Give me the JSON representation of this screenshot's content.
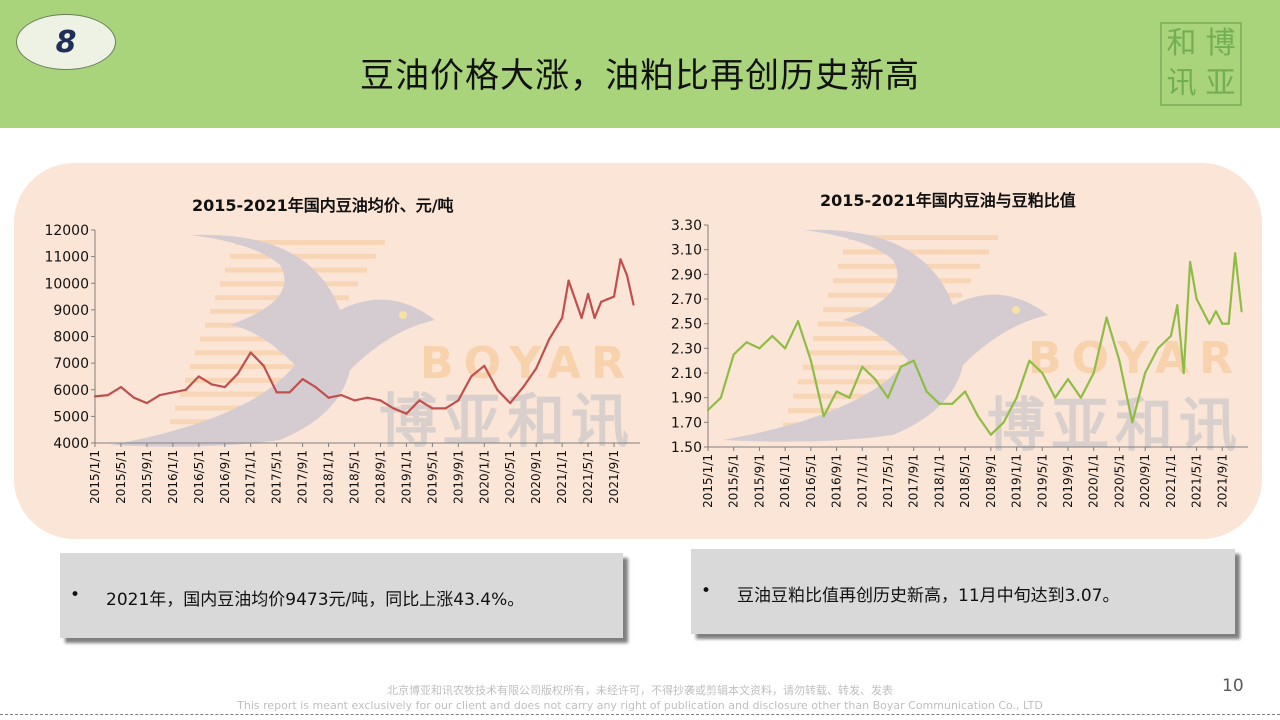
{
  "header": {
    "slide_number": "8",
    "title": "豆油价格大涨，油粕比再创历史新高",
    "logo_chars": [
      "和",
      "博",
      "讯",
      "亚"
    ]
  },
  "watermark": {
    "latin": "BOYAR",
    "cjk": "博亚和讯"
  },
  "chart_data": [
    {
      "type": "line",
      "title": "2015-2021年国内豆油均价、元/吨",
      "color": "#c0504d",
      "ylim": [
        4000,
        12000
      ],
      "yticks": [
        12000,
        11000,
        10000,
        9000,
        8000,
        7000,
        6000,
        5000,
        4000
      ],
      "xticks": [
        "2015/1/1",
        "2015/5/1",
        "2015/9/1",
        "2016/1/1",
        "2016/5/1",
        "2016/9/1",
        "2017/1/1",
        "2017/5/1",
        "2017/9/1",
        "2018/1/1",
        "2018/5/1",
        "2018/9/1",
        "2019/1/1",
        "2019/5/1",
        "2019/9/1",
        "2020/1/1",
        "2020/5/1",
        "2020/9/1",
        "2021/1/1",
        "2021/5/1",
        "2021/9/1"
      ],
      "x": [
        "2015/1",
        "2015/3",
        "2015/5",
        "2015/7",
        "2015/9",
        "2015/11",
        "2016/1",
        "2016/3",
        "2016/5",
        "2016/7",
        "2016/9",
        "2016/11",
        "2017/1",
        "2017/3",
        "2017/5",
        "2017/7",
        "2017/9",
        "2017/11",
        "2018/1",
        "2018/3",
        "2018/5",
        "2018/7",
        "2018/9",
        "2018/11",
        "2019/1",
        "2019/3",
        "2019/5",
        "2019/7",
        "2019/9",
        "2019/11",
        "2020/1",
        "2020/3",
        "2020/5",
        "2020/7",
        "2020/9",
        "2020/11",
        "2021/1",
        "2021/2",
        "2021/4",
        "2021/5",
        "2021/6",
        "2021/7",
        "2021/8",
        "2021/9",
        "2021/10",
        "2021/11",
        "2021/12"
      ],
      "values": [
        5750,
        5800,
        6100,
        5700,
        5500,
        5800,
        5900,
        6000,
        6500,
        6200,
        6100,
        6600,
        7400,
        6900,
        5900,
        5900,
        6400,
        6100,
        5700,
        5800,
        5600,
        5700,
        5600,
        5300,
        5100,
        5600,
        5300,
        5300,
        5600,
        6500,
        6900,
        6000,
        5500,
        6100,
        6800,
        7900,
        8700,
        10100,
        8700,
        9600,
        8700,
        9300,
        9400,
        9500,
        10900,
        10300,
        9200
      ]
    },
    {
      "type": "line",
      "title": "2015-2021年国内豆油与豆粕比值",
      "color": "#8fbc45",
      "ylim": [
        1.5,
        3.3
      ],
      "yticks": [
        "3.30",
        "3.10",
        "2.90",
        "2.70",
        "2.50",
        "2.30",
        "2.10",
        "1.90",
        "1.70",
        "1.50"
      ],
      "xticks": [
        "2015/1/1",
        "2015/5/1",
        "2015/9/1",
        "2016/1/1",
        "2016/5/1",
        "2016/9/1",
        "2017/1/1",
        "2017/5/1",
        "2017/9/1",
        "2018/1/1",
        "2018/5/1",
        "2018/9/1",
        "2019/1/1",
        "2019/5/1",
        "2019/9/1",
        "2020/1/1",
        "2020/5/1",
        "2020/9/1",
        "2021/1/1",
        "2021/5/1",
        "2021/9/1"
      ],
      "x": [
        "2015/1",
        "2015/3",
        "2015/5",
        "2015/7",
        "2015/9",
        "2015/11",
        "2016/1",
        "2016/3",
        "2016/5",
        "2016/7",
        "2016/9",
        "2016/11",
        "2017/1",
        "2017/3",
        "2017/5",
        "2017/7",
        "2017/9",
        "2017/11",
        "2018/1",
        "2018/3",
        "2018/5",
        "2018/7",
        "2018/9",
        "2018/11",
        "2019/1",
        "2019/3",
        "2019/5",
        "2019/7",
        "2019/9",
        "2019/11",
        "2020/1",
        "2020/3",
        "2020/5",
        "2020/7",
        "2020/9",
        "2020/11",
        "2021/1",
        "2021/2",
        "2021/3",
        "2021/4",
        "2021/5",
        "2021/7",
        "2021/8",
        "2021/9",
        "2021/10",
        "2021/11",
        "2021/12"
      ],
      "values": [
        1.8,
        1.9,
        2.25,
        2.35,
        2.3,
        2.4,
        2.3,
        2.52,
        2.2,
        1.75,
        1.95,
        1.9,
        2.15,
        2.05,
        1.9,
        2.15,
        2.2,
        1.95,
        1.85,
        1.85,
        1.95,
        1.75,
        1.6,
        1.7,
        1.9,
        2.2,
        2.1,
        1.9,
        2.05,
        1.9,
        2.1,
        2.55,
        2.2,
        1.7,
        2.1,
        2.3,
        2.4,
        2.65,
        2.1,
        3.0,
        2.7,
        2.5,
        2.6,
        2.5,
        2.5,
        3.07,
        2.6
      ]
    }
  ],
  "notes": [
    {
      "bullet": "•",
      "text": "2021年，国内豆油均价9473元/吨，同比上涨43.4%。"
    },
    {
      "bullet": "•",
      "text": "豆油豆粕比值再创历史新高，11月中旬达到3.07。"
    }
  ],
  "footer": {
    "page_number": "10",
    "copyright_cn": "北京博亚和讯农牧技术有限公司版权所有，未经许可，不得抄袭或剪辑本文资料，请勿转载、转发、发表",
    "copyright_en": "This report is meant exclusively for our client and does not carry any right of publication and disclosure other than Boyar Communication Co., LTD"
  }
}
